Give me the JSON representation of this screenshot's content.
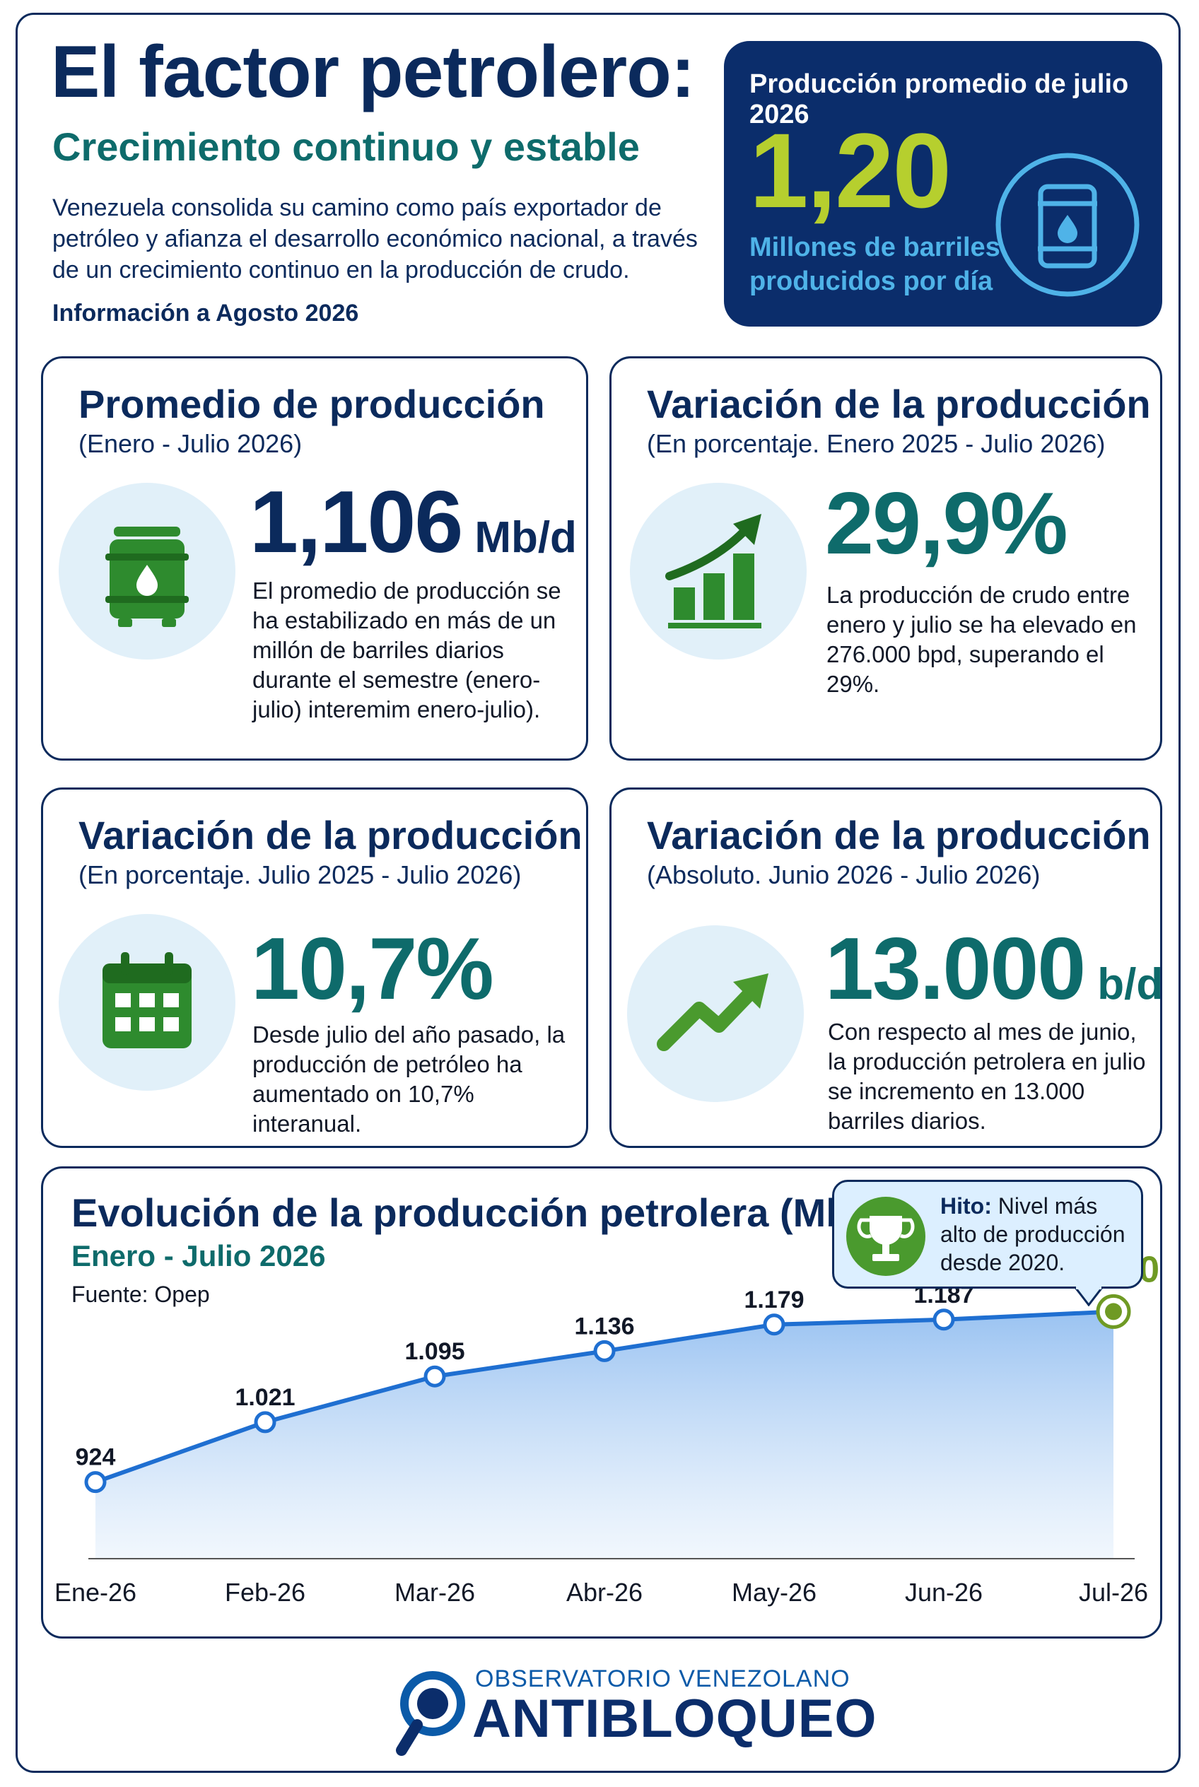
{
  "header": {
    "title": "El factor petrolero:",
    "subtitle": "Crecimiento continuo y estable",
    "intro": "Venezuela consolida su camino como país exportador de petróleo y afianza el desarrollo económico nacional, a través de un crecimiento continuo en la producción de crudo.",
    "info_date": "Información a Agosto 2026"
  },
  "hero": {
    "label": "Producción promedio de julio 2026",
    "value": "1,20",
    "unit": "Millones de barriles producidos por día",
    "icon": "oil-barrel-icon"
  },
  "cards": [
    {
      "title": "Promedio de producción",
      "subtitle": "(Enero - Julio 2026)",
      "value": "1,106",
      "unit": "Mb/d",
      "description": "El promedio de producción se ha estabilizado en más de un millón de barriles diarios durante el semestre (enero-julio) interemim enero-julio).",
      "icon": "oil-barrel-icon"
    },
    {
      "title": "Variación de la producción",
      "subtitle": "(En porcentaje. Enero 2025 - Julio 2026)",
      "value": "29,9%",
      "unit": "",
      "description": "La producción de crudo entre enero y julio se ha elevado en 276.000 bpd, superando el 29%.",
      "icon": "bar-chart-growth-icon"
    },
    {
      "title": "Variación de la producción",
      "subtitle": "(En porcentaje. Julio 2025 - Julio 2026)",
      "value": "10,7%",
      "unit": "",
      "description": "Desde julio del año pasado, la producción de petróleo ha aumentado on 10,7% interanual.",
      "icon": "calendar-icon"
    },
    {
      "title": "Variación de la producción",
      "subtitle": "(Absoluto. Junio 2026 - Julio 2026)",
      "value": "13.000",
      "unit": "b/d",
      "description": "Con respecto al mes de junio, la producción petrolera en julio se incremento en 13.000 barriles diarios.",
      "icon": "trend-up-arrow-icon"
    }
  ],
  "chart_data": {
    "type": "area",
    "title": "Evolución de la producción petrolera (Mb/d)",
    "subtitle": "Enero - Julio 2026",
    "source": "Fuente: Opep",
    "categories": [
      "Ene-26",
      "Feb-26",
      "Mar-26",
      "Abr-26",
      "May-26",
      "Jun-26",
      "Jul-26"
    ],
    "values": [
      924,
      1021,
      1095,
      1136,
      1179,
      1187,
      1200
    ],
    "data_labels": [
      "924",
      "1.021",
      "1.095",
      "1.136",
      "1.179",
      "1.187",
      "1.200"
    ],
    "ylim": [
      800,
      1260
    ],
    "grid": false,
    "highlight_index": 6,
    "colors": {
      "line": "#1f6fd1",
      "area_top": "#8fbcf0",
      "highlight": "#6f9a24",
      "label": "#111827"
    }
  },
  "callout": {
    "label": "Hito:",
    "text": "Nivel más alto de producción desde 2020.",
    "icon": "trophy-icon"
  },
  "footer": {
    "org_line1": "OBSERVATORIO VENEZOLANO",
    "org_line2": "ANTIBLOQUEO",
    "icon": "magnifier-logo-icon"
  },
  "colors": {
    "navy": "#0b2a5c",
    "teal": "#0e6b6b",
    "lime": "#b6cf2e",
    "sky": "#4fb3e8",
    "green": "#2e8b2e"
  }
}
